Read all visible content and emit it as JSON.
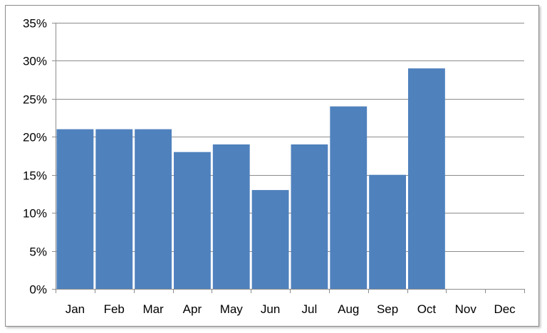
{
  "chart_data": {
    "type": "bar",
    "title": "",
    "xlabel": "",
    "ylabel": "",
    "categories": [
      "Jan",
      "Feb",
      "Mar",
      "Apr",
      "May",
      "Jun",
      "Jul",
      "Aug",
      "Sep",
      "Oct",
      "Nov",
      "Dec"
    ],
    "values": [
      21,
      21,
      21,
      18,
      19,
      13,
      19,
      24,
      15,
      29,
      null,
      null
    ],
    "value_unit": "%",
    "ylim": [
      0,
      35
    ],
    "ytick_step": 5,
    "ytick_labels": [
      "0%",
      "5%",
      "10%",
      "15%",
      "20%",
      "25%",
      "30%",
      "35%"
    ],
    "grid": true,
    "legend": "none",
    "bar_color": "#4f81bd"
  }
}
